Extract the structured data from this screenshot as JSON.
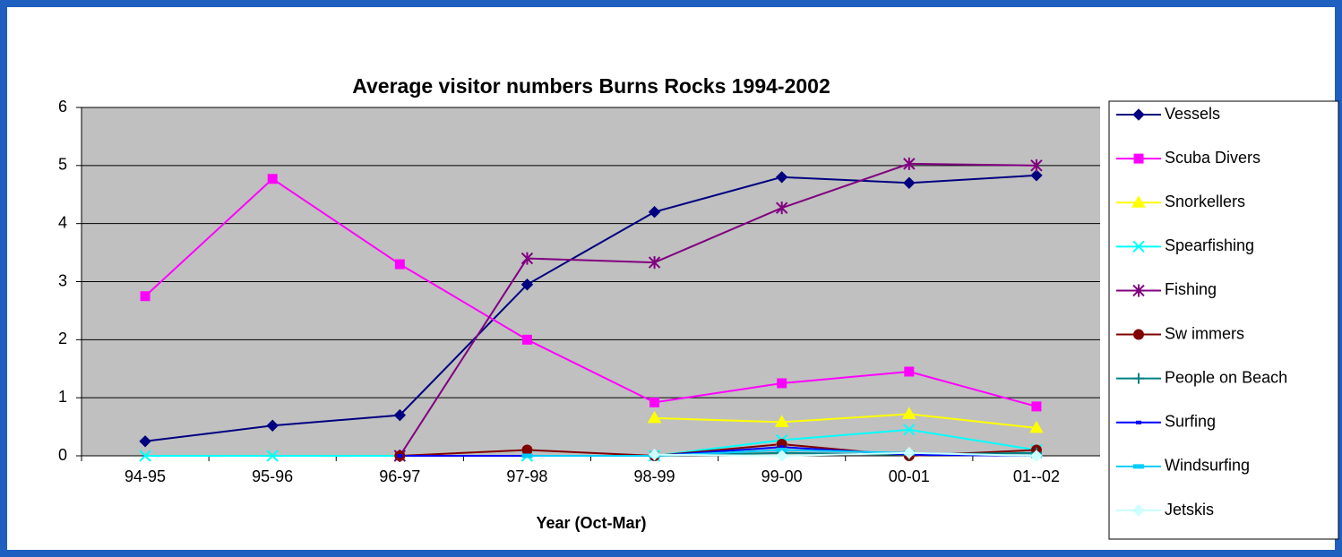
{
  "chart_data": {
    "type": "line",
    "title": "Average visitor numbers Burns Rocks 1994-2002",
    "x_label": "Year (Oct-Mar)",
    "categories": [
      "94-95",
      "95-96",
      "96-97",
      "97-98",
      "98-99",
      "99-00",
      "00-01",
      "01--02"
    ],
    "ylim": [
      0,
      6
    ],
    "yticks": [
      0,
      1,
      2,
      3,
      4,
      5,
      6
    ],
    "grid": true,
    "legend": "right",
    "series": [
      {
        "name": "Vessels",
        "color": "#000080",
        "marker": "diamond",
        "values": [
          0.25,
          0.52,
          0.7,
          2.95,
          4.2,
          4.8,
          4.7,
          4.83
        ]
      },
      {
        "name": "Scuba Divers",
        "color": "#ff00ff",
        "marker": "square",
        "values": [
          2.75,
          4.77,
          3.3,
          2.0,
          0.92,
          1.25,
          1.45,
          0.85
        ]
      },
      {
        "name": "Snorkellers",
        "color": "#ffff00",
        "marker": "triangle",
        "values": [
          null,
          null,
          null,
          null,
          0.65,
          0.58,
          0.72,
          0.48
        ]
      },
      {
        "name": "Spearfishing",
        "color": "#00ffff",
        "marker": "x",
        "values": [
          0,
          0,
          0,
          0,
          0,
          0.27,
          0.45,
          0.1
        ]
      },
      {
        "name": "Fishing",
        "color": "#800080",
        "marker": "star",
        "values": [
          null,
          null,
          0,
          3.4,
          3.33,
          4.27,
          5.03,
          5.0
        ]
      },
      {
        "name": "Sw immers",
        "color": "#800000",
        "marker": "circle",
        "values": [
          null,
          null,
          0,
          0.1,
          0,
          0.2,
          0,
          0.1
        ]
      },
      {
        "name": "People on Beach",
        "color": "#008080",
        "marker": "plus",
        "values": [
          null,
          null,
          null,
          null,
          0,
          0.05,
          0.02,
          0.05
        ]
      },
      {
        "name": "Surfing",
        "color": "#0000ff",
        "marker": "dash",
        "values": [
          null,
          null,
          0,
          0,
          0,
          0.15,
          0.02,
          0
        ]
      },
      {
        "name": "Windsurfing",
        "color": "#00ccff",
        "marker": "bar",
        "values": [
          null,
          null,
          null,
          0,
          0,
          0.1,
          0.05,
          0
        ]
      },
      {
        "name": "Jetskis",
        "color": "#ccffff",
        "marker": "diamond",
        "values": [
          null,
          null,
          null,
          null,
          0.02,
          0,
          0.05,
          0
        ]
      }
    ]
  }
}
